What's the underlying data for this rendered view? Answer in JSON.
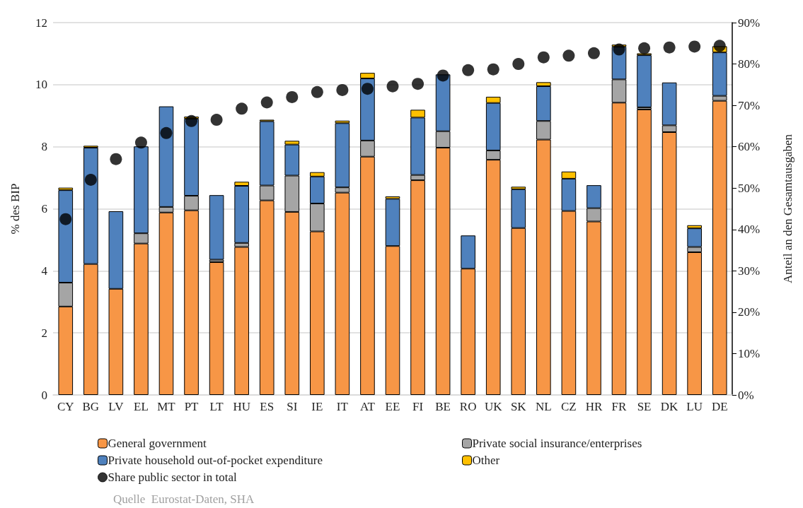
{
  "chart_data": {
    "type": "bar",
    "stacked": true,
    "ylabel": "% des BIP",
    "y2label": "Anteil an den Gesamtausgaben",
    "categories": [
      "CY",
      "BG",
      "LV",
      "EL",
      "MT",
      "PT",
      "LT",
      "HU",
      "ES",
      "SI",
      "IE",
      "IT",
      "AT",
      "EE",
      "FI",
      "BE",
      "RO",
      "UK",
      "SK",
      "NL",
      "CZ",
      "HR",
      "FR",
      "SE",
      "DK",
      "LU",
      "DE"
    ],
    "series": [
      {
        "name": "General government",
        "color": "#f79646",
        "values": [
          2.85,
          4.22,
          3.42,
          4.88,
          5.88,
          5.95,
          4.28,
          4.77,
          6.27,
          5.9,
          5.27,
          6.52,
          7.68,
          4.8,
          6.92,
          7.97,
          4.07,
          7.58,
          5.38,
          8.23,
          5.93,
          5.59,
          9.42,
          9.2,
          8.47,
          4.6,
          9.48
        ]
      },
      {
        "name": "Private social insurance/enterprises",
        "color": "#a5a5a5",
        "values": [
          0.77,
          null,
          null,
          0.33,
          0.18,
          0.47,
          0.08,
          0.13,
          0.48,
          1.17,
          0.9,
          0.17,
          0.52,
          null,
          0.17,
          0.53,
          null,
          0.3,
          null,
          0.6,
          null,
          0.43,
          0.75,
          0.07,
          0.22,
          0.17,
          0.16
        ]
      },
      {
        "name": "Private household out-of-pocket expenditure",
        "color": "#4f81bd",
        "values": [
          2.98,
          3.75,
          2.5,
          2.8,
          3.24,
          2.48,
          2.08,
          1.84,
          2.07,
          1.0,
          0.87,
          2.07,
          2.0,
          1.52,
          1.85,
          1.83,
          1.07,
          1.53,
          1.25,
          1.12,
          1.04,
          0.74,
          1.05,
          1.68,
          1.38,
          0.6,
          1.4
        ]
      },
      {
        "name": "Other",
        "color": "#ffc000",
        "values": [
          0.08,
          0.06,
          null,
          null,
          null,
          0.07,
          null,
          0.13,
          0.05,
          0.12,
          0.14,
          0.08,
          0.18,
          0.08,
          0.25,
          null,
          null,
          0.2,
          0.08,
          0.13,
          0.23,
          null,
          0.07,
          0.06,
          null,
          0.1,
          0.2
        ]
      },
      {
        "name": "Share public sector in total",
        "type": "scatter",
        "axis": "y2",
        "marker": "circle",
        "color": "#000000",
        "values": [
          42.5,
          52,
          57,
          61,
          63.3,
          66.2,
          66.5,
          69.2,
          70.7,
          72,
          73.2,
          73.7,
          74,
          74.6,
          75.2,
          77.2,
          78.5,
          78.7,
          80,
          81.6,
          82,
          82.6,
          83.5,
          83.8,
          84,
          84.2,
          84.4
        ]
      }
    ],
    "ylim": [
      0,
      12
    ],
    "yticks": [
      0,
      2,
      4,
      6,
      8,
      10,
      12
    ],
    "y2lim": [
      0,
      90
    ],
    "y2ticks": [
      {
        "value": 0,
        "label": "0%"
      },
      {
        "value": 10,
        "label": "10%"
      },
      {
        "value": 20,
        "label": "20%"
      },
      {
        "value": 30,
        "label": "30%"
      },
      {
        "value": 40,
        "label": "40%"
      },
      {
        "value": 50,
        "label": "50%"
      },
      {
        "value": 60,
        "label": "60%"
      },
      {
        "value": 70,
        "label": "70%"
      },
      {
        "value": 80,
        "label": "80%"
      },
      {
        "value": 90,
        "label": "90%"
      }
    ],
    "grid": "y",
    "legend": "bottom",
    "annotations": [
      "Quelle  Eurostat-Daten, SHA"
    ]
  }
}
